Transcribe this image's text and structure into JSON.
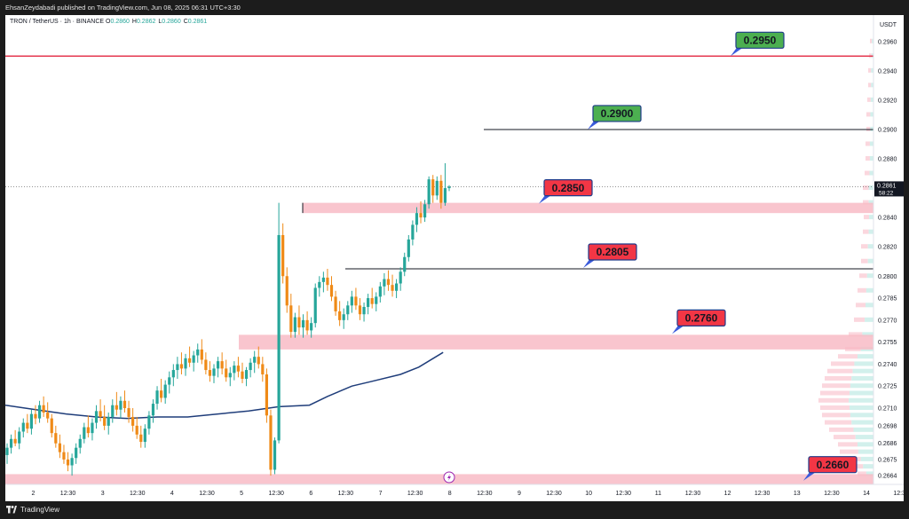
{
  "header": {
    "published_by": "EhsanZeydabadi published on TradingView.com, Jun 08, 2025 06:31 UTC+3:30"
  },
  "symbol": {
    "title": "TRON / TetherUS · 1h · BINANCE",
    "ohlc": [
      {
        "key": "O",
        "value": "0.2860"
      },
      {
        "key": "H",
        "value": "0.2862"
      },
      {
        "key": "L",
        "value": "0.2860"
      },
      {
        "key": "C",
        "value": "0.2861"
      }
    ]
  },
  "footer": {
    "brand": "TradingView"
  },
  "colors": {
    "up": "#26a69a",
    "down": "#ef8a17",
    "zone": "#f8bbc6",
    "resistance": "#e53950",
    "ma": "#1f3d7a",
    "label_green": "#4caf50",
    "label_red": "#f23645"
  },
  "chart_data": {
    "type": "candlestick",
    "y_axis": {
      "unit": "USDT",
      "ylim": [
        0.2658,
        0.2978
      ],
      "ticks": [
        "0.2960",
        "0.2940",
        "0.2920",
        "0.2900",
        "0.2880",
        "0.2860",
        "0.2840",
        "0.2820",
        "0.2800",
        "0.2785",
        "0.2770",
        "0.2755",
        "0.2740",
        "0.2725",
        "0.2710",
        "0.2698",
        "0.2686",
        "0.2675",
        "0.2664"
      ],
      "current_price": "0.2861",
      "countdown": "58:22"
    },
    "x_axis": {
      "ticks": [
        "2",
        "12:30",
        "3",
        "12:30",
        "4",
        "12:30",
        "5",
        "12:30",
        "6",
        "12:30",
        "7",
        "12:30",
        "8",
        "12:30",
        "9",
        "12:30",
        "10",
        "12:30",
        "11",
        "12:30",
        "12",
        "12:30",
        "13",
        "12:30",
        "14",
        "12:30"
      ]
    },
    "levels": [
      {
        "label": "0.2950",
        "value": 0.295,
        "style": "resistance-line",
        "color": "green"
      },
      {
        "label": "0.2900",
        "value": 0.29,
        "style": "line",
        "color": "green"
      },
      {
        "label": "0.2850",
        "value": 0.285,
        "style": "zone",
        "color": "red"
      },
      {
        "label": "0.2805",
        "value": 0.2805,
        "style": "line",
        "color": "red"
      },
      {
        "label": "0.2760",
        "value": 0.276,
        "style": "zone",
        "color": "red"
      },
      {
        "label": "0.2660",
        "value": 0.266,
        "style": "zone",
        "color": "red"
      }
    ],
    "zones": [
      {
        "low": 0.2843,
        "high": 0.285
      },
      {
        "low": 0.275,
        "high": 0.276
      },
      {
        "low": 0.2658,
        "high": 0.2665
      }
    ],
    "moving_average_path": [
      [
        1.0,
        0.2712
      ],
      [
        1.5,
        0.2709
      ],
      [
        2.0,
        0.2706
      ],
      [
        2.5,
        0.2704
      ],
      [
        3.0,
        0.2703
      ],
      [
        3.5,
        0.2704
      ],
      [
        4.0,
        0.2704
      ],
      [
        4.5,
        0.2706
      ],
      [
        5.0,
        0.2708
      ],
      [
        5.5,
        0.2711
      ],
      [
        6.0,
        0.2712
      ],
      [
        6.3,
        0.2718
      ],
      [
        6.7,
        0.2725
      ],
      [
        7.0,
        0.2728
      ],
      [
        7.5,
        0.2733
      ],
      [
        7.8,
        0.2738
      ],
      [
        8.2,
        0.2748
      ]
    ],
    "candles_ohlc": [
      [
        0.2678,
        0.2686,
        0.2672,
        0.2683
      ],
      [
        0.2683,
        0.2692,
        0.2679,
        0.2689
      ],
      [
        0.2689,
        0.2695,
        0.2684,
        0.2686
      ],
      [
        0.2686,
        0.2697,
        0.2682,
        0.2694
      ],
      [
        0.2694,
        0.2703,
        0.269,
        0.27
      ],
      [
        0.27,
        0.2706,
        0.2693,
        0.2696
      ],
      [
        0.2696,
        0.2709,
        0.2692,
        0.2706
      ],
      [
        0.2706,
        0.2712,
        0.2699,
        0.2703
      ],
      [
        0.2703,
        0.2715,
        0.27,
        0.2712
      ],
      [
        0.2712,
        0.2718,
        0.2704,
        0.2707
      ],
      [
        0.2707,
        0.2714,
        0.27,
        0.2703
      ],
      [
        0.2703,
        0.2706,
        0.269,
        0.2693
      ],
      [
        0.2693,
        0.2698,
        0.2683,
        0.2686
      ],
      [
        0.2686,
        0.2692,
        0.2676,
        0.268
      ],
      [
        0.268,
        0.2685,
        0.2672,
        0.2675
      ],
      [
        0.2675,
        0.268,
        0.2667,
        0.2671
      ],
      [
        0.2671,
        0.2679,
        0.2664,
        0.2676
      ],
      [
        0.2676,
        0.2686,
        0.2672,
        0.2683
      ],
      [
        0.2683,
        0.2692,
        0.2679,
        0.2689
      ],
      [
        0.2689,
        0.27,
        0.2686,
        0.2697
      ],
      [
        0.2697,
        0.2705,
        0.269,
        0.2693
      ],
      [
        0.2693,
        0.2703,
        0.2688,
        0.27
      ],
      [
        0.27,
        0.2712,
        0.2696,
        0.2708
      ],
      [
        0.2708,
        0.2716,
        0.2701,
        0.2704
      ],
      [
        0.2704,
        0.2712,
        0.2695,
        0.2698
      ],
      [
        0.2698,
        0.2707,
        0.2692,
        0.2704
      ],
      [
        0.2704,
        0.2716,
        0.27,
        0.2712
      ],
      [
        0.2712,
        0.2721,
        0.2705,
        0.2709
      ],
      [
        0.2709,
        0.2718,
        0.2703,
        0.2715
      ],
      [
        0.2715,
        0.2722,
        0.2707,
        0.271
      ],
      [
        0.271,
        0.2715,
        0.27,
        0.2704
      ],
      [
        0.2704,
        0.271,
        0.2694,
        0.2698
      ],
      [
        0.2698,
        0.2704,
        0.2689,
        0.2692
      ],
      [
        0.2692,
        0.2698,
        0.2683,
        0.2687
      ],
      [
        0.2687,
        0.2699,
        0.2683,
        0.2696
      ],
      [
        0.2696,
        0.2708,
        0.2692,
        0.2705
      ],
      [
        0.2705,
        0.2716,
        0.27,
        0.2713
      ],
      [
        0.2713,
        0.2725,
        0.2709,
        0.2722
      ],
      [
        0.2722,
        0.273,
        0.2714,
        0.2717
      ],
      [
        0.2717,
        0.2729,
        0.2713,
        0.2726
      ],
      [
        0.2726,
        0.2735,
        0.272,
        0.2731
      ],
      [
        0.2731,
        0.274,
        0.2725,
        0.2736
      ],
      [
        0.2736,
        0.2745,
        0.273,
        0.274
      ],
      [
        0.274,
        0.2748,
        0.2733,
        0.2737
      ],
      [
        0.2737,
        0.2747,
        0.2732,
        0.2744
      ],
      [
        0.2744,
        0.2752,
        0.2738,
        0.2741
      ],
      [
        0.2741,
        0.2749,
        0.2735,
        0.2746
      ],
      [
        0.2746,
        0.2754,
        0.2741,
        0.275
      ],
      [
        0.275,
        0.2757,
        0.274,
        0.2743
      ],
      [
        0.2743,
        0.2748,
        0.2733,
        0.2736
      ],
      [
        0.2736,
        0.2742,
        0.2728,
        0.2732
      ],
      [
        0.2732,
        0.274,
        0.2727,
        0.2737
      ],
      [
        0.2737,
        0.2745,
        0.2731,
        0.2742
      ],
      [
        0.2742,
        0.2748,
        0.2733,
        0.2737
      ],
      [
        0.2737,
        0.2743,
        0.2728,
        0.2731
      ],
      [
        0.2731,
        0.2738,
        0.2725,
        0.2734
      ],
      [
        0.2734,
        0.2742,
        0.2729,
        0.2739
      ],
      [
        0.2739,
        0.2745,
        0.2731,
        0.2735
      ],
      [
        0.2735,
        0.2741,
        0.2727,
        0.273
      ],
      [
        0.273,
        0.2738,
        0.2725,
        0.2736
      ],
      [
        0.2736,
        0.2744,
        0.2731,
        0.2741
      ],
      [
        0.2741,
        0.2749,
        0.2734,
        0.2745
      ],
      [
        0.2745,
        0.2752,
        0.2737,
        0.274
      ],
      [
        0.274,
        0.2745,
        0.2728,
        0.2733
      ],
      [
        0.2733,
        0.2737,
        0.27,
        0.2705
      ],
      [
        0.2705,
        0.2709,
        0.2664,
        0.2668
      ],
      [
        0.2668,
        0.269,
        0.2665,
        0.2688
      ],
      [
        0.2688,
        0.285,
        0.2686,
        0.2828
      ],
      [
        0.2828,
        0.2836,
        0.2795,
        0.28
      ],
      [
        0.28,
        0.2806,
        0.2775,
        0.278
      ],
      [
        0.278,
        0.2788,
        0.2758,
        0.2762
      ],
      [
        0.2762,
        0.2775,
        0.2758,
        0.2772
      ],
      [
        0.2772,
        0.278,
        0.276,
        0.2765
      ],
      [
        0.2765,
        0.2774,
        0.2758,
        0.277
      ],
      [
        0.277,
        0.2776,
        0.276,
        0.2763
      ],
      [
        0.2763,
        0.2772,
        0.2758,
        0.2768
      ],
      [
        0.2768,
        0.2795,
        0.2765,
        0.2792
      ],
      [
        0.2792,
        0.28,
        0.2786,
        0.2796
      ],
      [
        0.2796,
        0.2803,
        0.2789,
        0.2799
      ],
      [
        0.2799,
        0.2805,
        0.279,
        0.2794
      ],
      [
        0.2794,
        0.28,
        0.2783,
        0.2786
      ],
      [
        0.2786,
        0.279,
        0.2773,
        0.2776
      ],
      [
        0.2776,
        0.2783,
        0.2766,
        0.277
      ],
      [
        0.277,
        0.2778,
        0.2764,
        0.2774
      ],
      [
        0.2774,
        0.2783,
        0.277,
        0.278
      ],
      [
        0.278,
        0.279,
        0.2775,
        0.2786
      ],
      [
        0.2786,
        0.2792,
        0.2777,
        0.278
      ],
      [
        0.278,
        0.2785,
        0.277,
        0.2774
      ],
      [
        0.2774,
        0.2782,
        0.2769,
        0.2779
      ],
      [
        0.2779,
        0.2788,
        0.2774,
        0.2785
      ],
      [
        0.2785,
        0.2792,
        0.2778,
        0.2781
      ],
      [
        0.2781,
        0.2789,
        0.2776,
        0.2786
      ],
      [
        0.2786,
        0.2796,
        0.2782,
        0.2793
      ],
      [
        0.2793,
        0.2802,
        0.2787,
        0.2798
      ],
      [
        0.2798,
        0.2804,
        0.279,
        0.2794
      ],
      [
        0.2794,
        0.2801,
        0.2786,
        0.279
      ],
      [
        0.279,
        0.2798,
        0.2785,
        0.2795
      ],
      [
        0.2795,
        0.2806,
        0.279,
        0.2803
      ],
      [
        0.2803,
        0.2816,
        0.28,
        0.2813
      ],
      [
        0.2813,
        0.2828,
        0.281,
        0.2825
      ],
      [
        0.2825,
        0.2838,
        0.2821,
        0.2835
      ],
      [
        0.2835,
        0.2847,
        0.283,
        0.2843
      ],
      [
        0.2843,
        0.2851,
        0.2836,
        0.284
      ],
      [
        0.284,
        0.2852,
        0.2837,
        0.2849
      ],
      [
        0.2849,
        0.2868,
        0.2846,
        0.2866
      ],
      [
        0.2866,
        0.2869,
        0.285,
        0.2855
      ],
      [
        0.2855,
        0.2868,
        0.2852,
        0.2865
      ],
      [
        0.2865,
        0.2869,
        0.2846,
        0.285
      ],
      [
        0.285,
        0.2877,
        0.2848,
        0.286
      ],
      [
        0.286,
        0.2862,
        0.2858,
        0.2861
      ]
    ],
    "candles_x_range": [
      1.0,
      8.3
    ],
    "x_axis_day_index_range": [
      0.7,
      13.0
    ]
  }
}
